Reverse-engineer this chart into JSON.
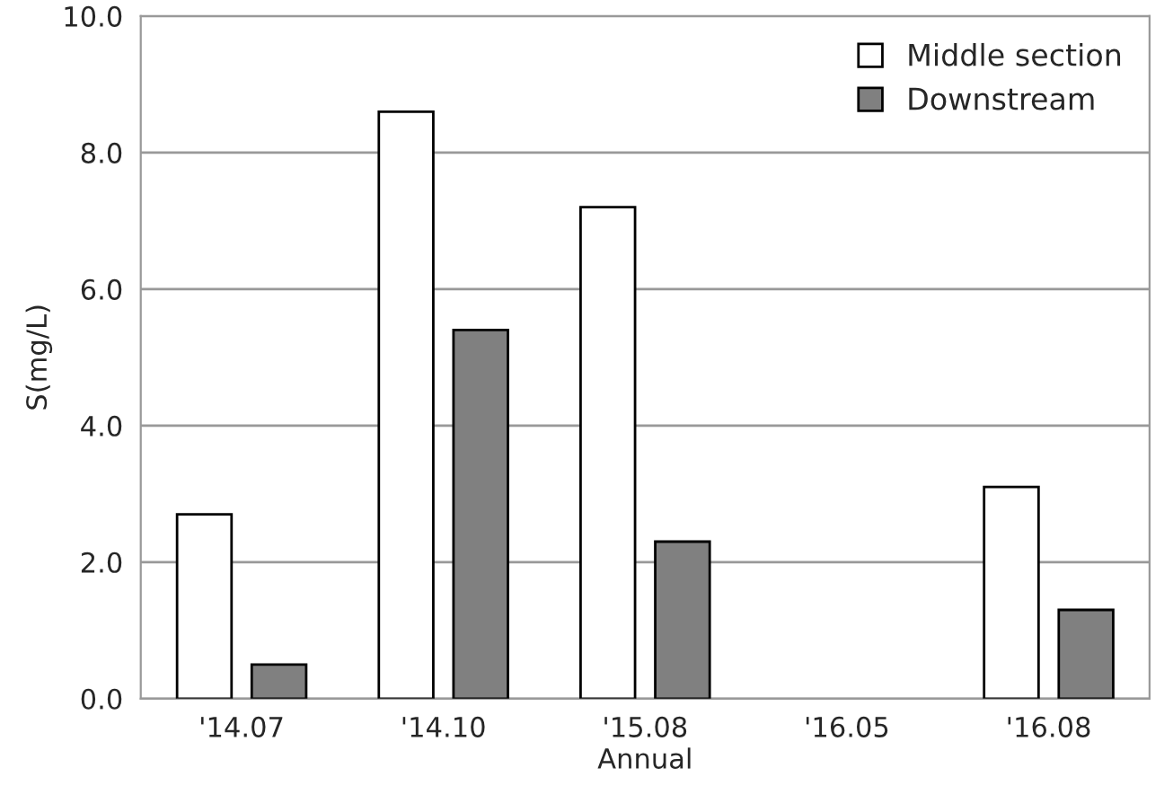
{
  "chart_data": {
    "type": "bar",
    "xlabel": "Annual",
    "ylabel": "S(mg/L)",
    "categories": [
      "'14.07",
      "'14.10",
      "'15.08",
      "'16.05",
      "'16.08"
    ],
    "series": [
      {
        "name": "Middle section",
        "color": "#ffffff",
        "values": [
          2.7,
          8.6,
          7.2,
          null,
          3.1
        ]
      },
      {
        "name": "Downstream",
        "color": "#808080",
        "values": [
          0.5,
          5.4,
          2.3,
          null,
          1.3
        ]
      }
    ],
    "ylim": [
      0,
      10
    ],
    "yticks": [
      {
        "value": 0,
        "label": "0.0"
      },
      {
        "value": 2,
        "label": "2.0"
      },
      {
        "value": 4,
        "label": "4.0"
      },
      {
        "value": 6,
        "label": "6.0"
      },
      {
        "value": 8,
        "label": "8.0"
      },
      {
        "value": 10,
        "label": "10.0"
      }
    ],
    "grid": "y",
    "legend": "top right"
  }
}
